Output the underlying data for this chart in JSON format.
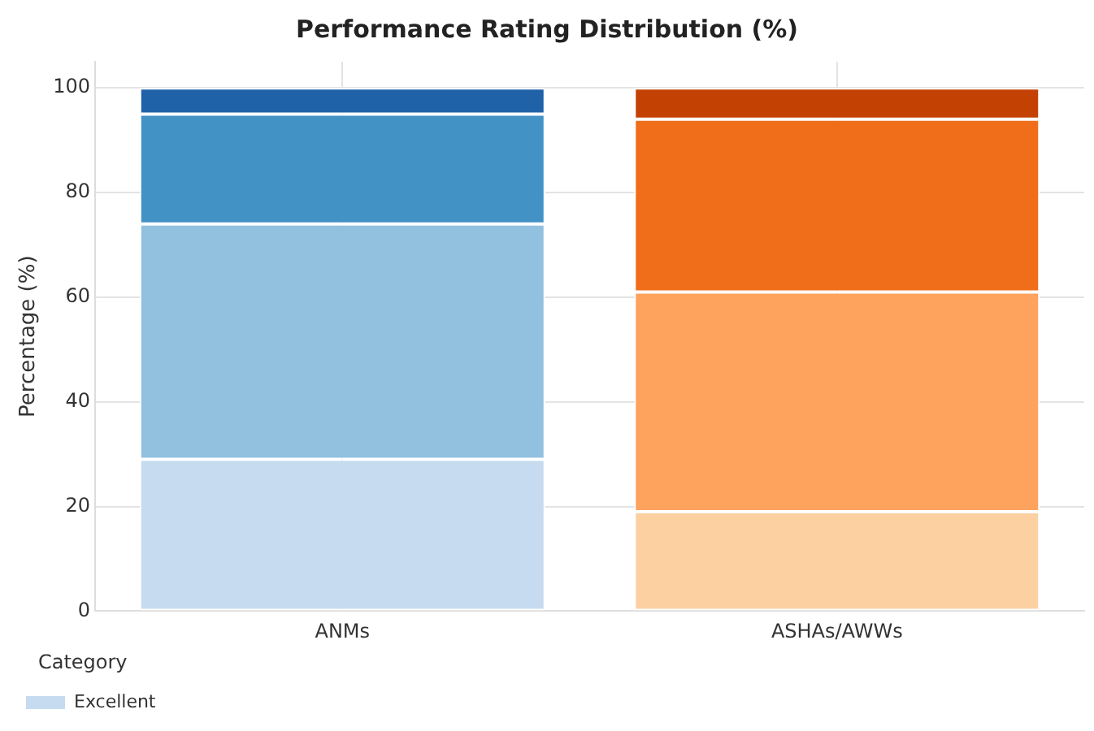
{
  "chart_data": {
    "type": "bar",
    "title": "Performance Rating Distribution (%)",
    "ylabel": "Percentage (%)",
    "categories": [
      "ANMs",
      "ASHAs/AWWs"
    ],
    "stacked": true,
    "series": [
      {
        "name": "Excellent",
        "colors": [
          "#c6dbef",
          "#fdd0a2"
        ],
        "values": [
          29,
          19
        ]
      },
      {
        "colors": [
          "#92c0df",
          "#fda35e"
        ],
        "values": [
          45,
          42
        ]
      },
      {
        "colors": [
          "#4292c6",
          "#f06d19"
        ],
        "values": [
          21,
          33
        ]
      },
      {
        "colors": [
          "#1f62a8",
          "#c44104"
        ],
        "values": [
          5,
          6
        ]
      }
    ],
    "ylim": [
      0,
      105
    ],
    "yticks": [
      0,
      20,
      40,
      60,
      80,
      100
    ],
    "grid": true,
    "legend": "bottom left",
    "legend_title": "Category"
  }
}
